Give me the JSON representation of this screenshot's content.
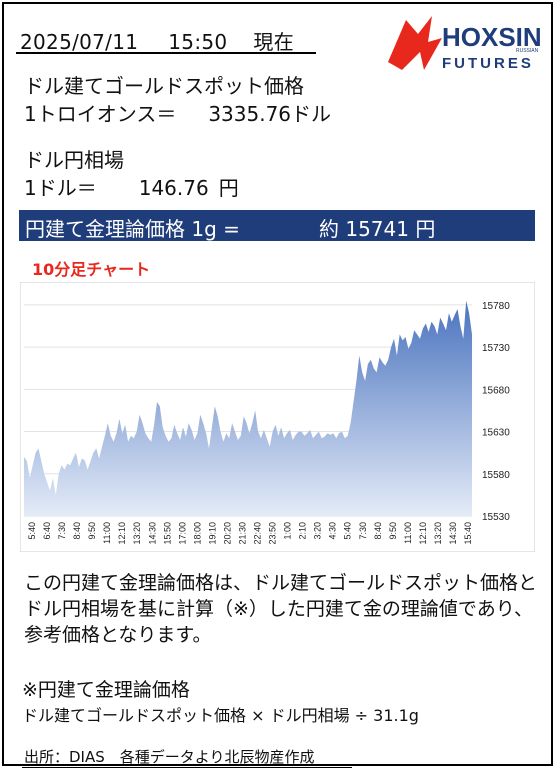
{
  "header": {
    "date": "2025/07/11",
    "time": "15:50",
    "status": "現在"
  },
  "logo": {
    "name": "HOXSIN",
    "sub": "FUTURES",
    "tiny": "RUSSIAN",
    "color_primary": "#1f3d7a",
    "color_accent": "#e8281c"
  },
  "gold": {
    "label": "ドル建てゴールドスポット価格",
    "unit_label": "1トロイオンス＝",
    "value": "3335.76",
    "unit": "ドル"
  },
  "fx": {
    "label": "ドル円相場",
    "unit_label": "1ドル＝",
    "value": "146.76",
    "unit": "円"
  },
  "theory": {
    "label": "円建て金理論価格 1g =",
    "value": "約 15741 円",
    "bar_color": "#1f3d7a"
  },
  "chart_title": "10分足チャート",
  "chart_data": {
    "type": "area",
    "title": "10分足チャート",
    "xlabel": "",
    "ylabel": "",
    "ylim": [
      15530,
      15800
    ],
    "yticks": [
      15530,
      15580,
      15630,
      15680,
      15730,
      15780
    ],
    "x_ticks": [
      "5:40",
      "6:40",
      "7:30",
      "8:40",
      "9:50",
      "11:00",
      "12:10",
      "13:20",
      "14:30",
      "15:50",
      "17:00",
      "18:00",
      "19:10",
      "20:20",
      "21:30",
      "22:40",
      "23:50",
      "1:00",
      "2:10",
      "3:20",
      "4:30",
      "5:40",
      "7:30",
      "8:40",
      "9:50",
      "11:00",
      "12:10",
      "13:20",
      "14:30",
      "15:40"
    ],
    "grid": true,
    "fill_color": "#4a73bf",
    "series": [
      {
        "values": [
          15600,
          15595,
          15575,
          15590,
          15605,
          15610,
          15595,
          15580,
          15570,
          15560,
          15575,
          15555,
          15580,
          15590,
          15585,
          15592,
          15590,
          15598,
          15605,
          15588,
          15598,
          15596,
          15585,
          15595,
          15605,
          15610,
          15598,
          15612,
          15625,
          15640,
          15625,
          15618,
          15628,
          15645,
          15628,
          15638,
          15618,
          15625,
          15622,
          15630,
          15650,
          15640,
          15628,
          15622,
          15618,
          15638,
          15665,
          15660,
          15635,
          15625,
          15618,
          15622,
          15638,
          15628,
          15620,
          15635,
          15624,
          15640,
          15632,
          15620,
          15628,
          15650,
          15640,
          15628,
          15610,
          15635,
          15660,
          15648,
          15630,
          15618,
          15628,
          15622,
          15640,
          15630,
          15620,
          15625,
          15648,
          15640,
          15628,
          15640,
          15655,
          15630,
          15622,
          15632,
          15622,
          15612,
          15630,
          15638,
          15625,
          15635,
          15622,
          15628,
          15632,
          15620,
          15626,
          15630,
          15630,
          15625,
          15628,
          15632,
          15622,
          15626,
          15630,
          15622,
          15624,
          15628,
          15626,
          15628,
          15622,
          15628,
          15630,
          15622,
          15625,
          15640,
          15665,
          15690,
          15720,
          15700,
          15690,
          15710,
          15715,
          15705,
          15700,
          15718,
          15712,
          15708,
          15715,
          15730,
          15740,
          15720,
          15745,
          15738,
          15742,
          15728,
          15735,
          15750,
          15745,
          15740,
          15752,
          15758,
          15748,
          15760,
          15755,
          15745,
          15765,
          15758,
          15750,
          15770,
          15760,
          15768,
          15775,
          15755,
          15740,
          15785,
          15770,
          15745
        ]
      }
    ]
  },
  "description": "この円建て金理論価格は、ドル建てゴールドスポット価格とドル円相場を基に計算（※）した円建て金の理論値であり、参考価格となります。",
  "formula_heading": "※円建て金理論価格",
  "formula": "ドル建てゴールドスポット価格 × ドル円相場 ÷ 31.1g",
  "source": "出所：DIAS　各種データより北辰物産作成"
}
